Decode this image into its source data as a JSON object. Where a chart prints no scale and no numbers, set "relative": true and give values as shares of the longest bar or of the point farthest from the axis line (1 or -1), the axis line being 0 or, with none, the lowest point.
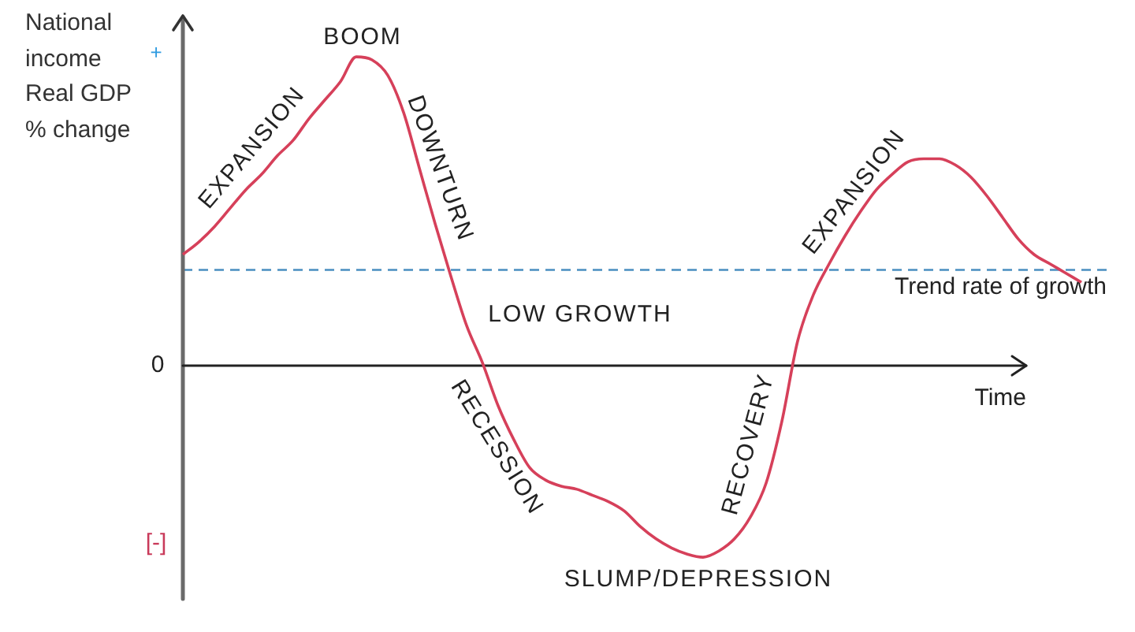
{
  "chart_data": {
    "type": "line",
    "ylabel": "National income Real GDP % change",
    "xlabel": "Time",
    "relative": true,
    "categories": [
      null,
      null,
      null,
      null,
      null,
      null,
      null,
      null,
      null,
      null,
      null,
      null,
      null,
      null,
      null,
      null,
      null,
      null,
      null,
      null,
      null,
      null,
      null,
      null,
      null,
      null,
      null,
      null,
      null,
      null,
      null,
      null,
      null,
      null,
      null,
      null,
      null,
      null,
      null,
      null,
      null,
      null,
      null,
      null,
      null,
      null,
      null,
      null,
      null,
      null,
      null,
      null,
      null,
      null,
      null,
      null,
      null,
      null
    ],
    "values": [
      0.36,
      0.4,
      0.45,
      0.51,
      0.57,
      0.62,
      0.68,
      0.73,
      0.8,
      0.86,
      0.92,
      1.0,
      0.99,
      0.94,
      0.82,
      0.64,
      0.46,
      0.29,
      0.13,
      0.01,
      -0.13,
      -0.24,
      -0.33,
      -0.37,
      -0.39,
      -0.4,
      -0.42,
      -0.44,
      -0.47,
      -0.52,
      -0.56,
      -0.59,
      -0.61,
      -0.62,
      -0.6,
      -0.56,
      -0.49,
      -0.38,
      -0.18,
      0.08,
      0.23,
      0.33,
      0.42,
      0.5,
      0.57,
      0.62,
      0.66,
      0.67,
      0.67,
      0.65,
      0.61,
      0.55,
      0.48,
      0.41,
      0.36,
      0.33,
      0.3,
      0.27
    ],
    "color": "#d6405a",
    "ref_lines": [
      {
        "axis": "y",
        "value": 0.31,
        "label": "Trend rate of growth",
        "color": "#4a8fc0",
        "line_style": "dashed"
      }
    ],
    "annotations": [
      "+",
      "0",
      "[-]",
      "EXPANSION",
      "BOOM",
      "DOWNTURN",
      "LOW GROWTH",
      "RECESSION",
      "SLUMP/DEPRESSION",
      "RECOVERY",
      "EXPANSION"
    ]
  }
}
